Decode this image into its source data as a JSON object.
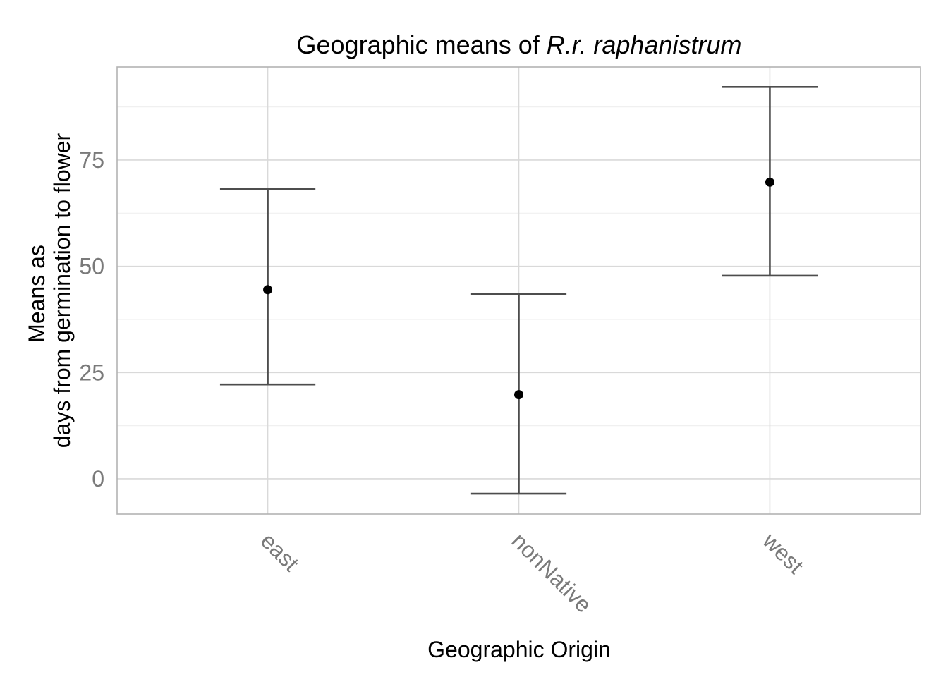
{
  "chart_data": {
    "type": "scatter",
    "title": "Geographic means of ",
    "title_italic": "R.r. raphanistrum",
    "xlabel": "Geographic Origin",
    "ylabel_lines": [
      "Means as",
      "days from germination to flower"
    ],
    "categories": [
      "east",
      "nonNative",
      "west"
    ],
    "series": [
      {
        "values": [
          44.5,
          19.8,
          69.8
        ],
        "error_low": [
          22.2,
          -3.5,
          47.8
        ],
        "error_high": [
          68.2,
          43.5,
          92.2
        ]
      }
    ],
    "y_ticks": [
      0,
      25,
      50,
      75
    ],
    "y_tick_labels": [
      "0",
      "25",
      "50",
      "75"
    ],
    "ylim": [
      -8.3,
      96.9
    ],
    "grid": true,
    "legend": "none",
    "colors": {
      "point": "#000000",
      "errorbar": "#4d4d4d",
      "grid_major": "#d9d9d9",
      "grid_minor": "#f0f0f0",
      "panel_border": "#b3b3b3",
      "tick_label": "#7a7a7a"
    }
  }
}
